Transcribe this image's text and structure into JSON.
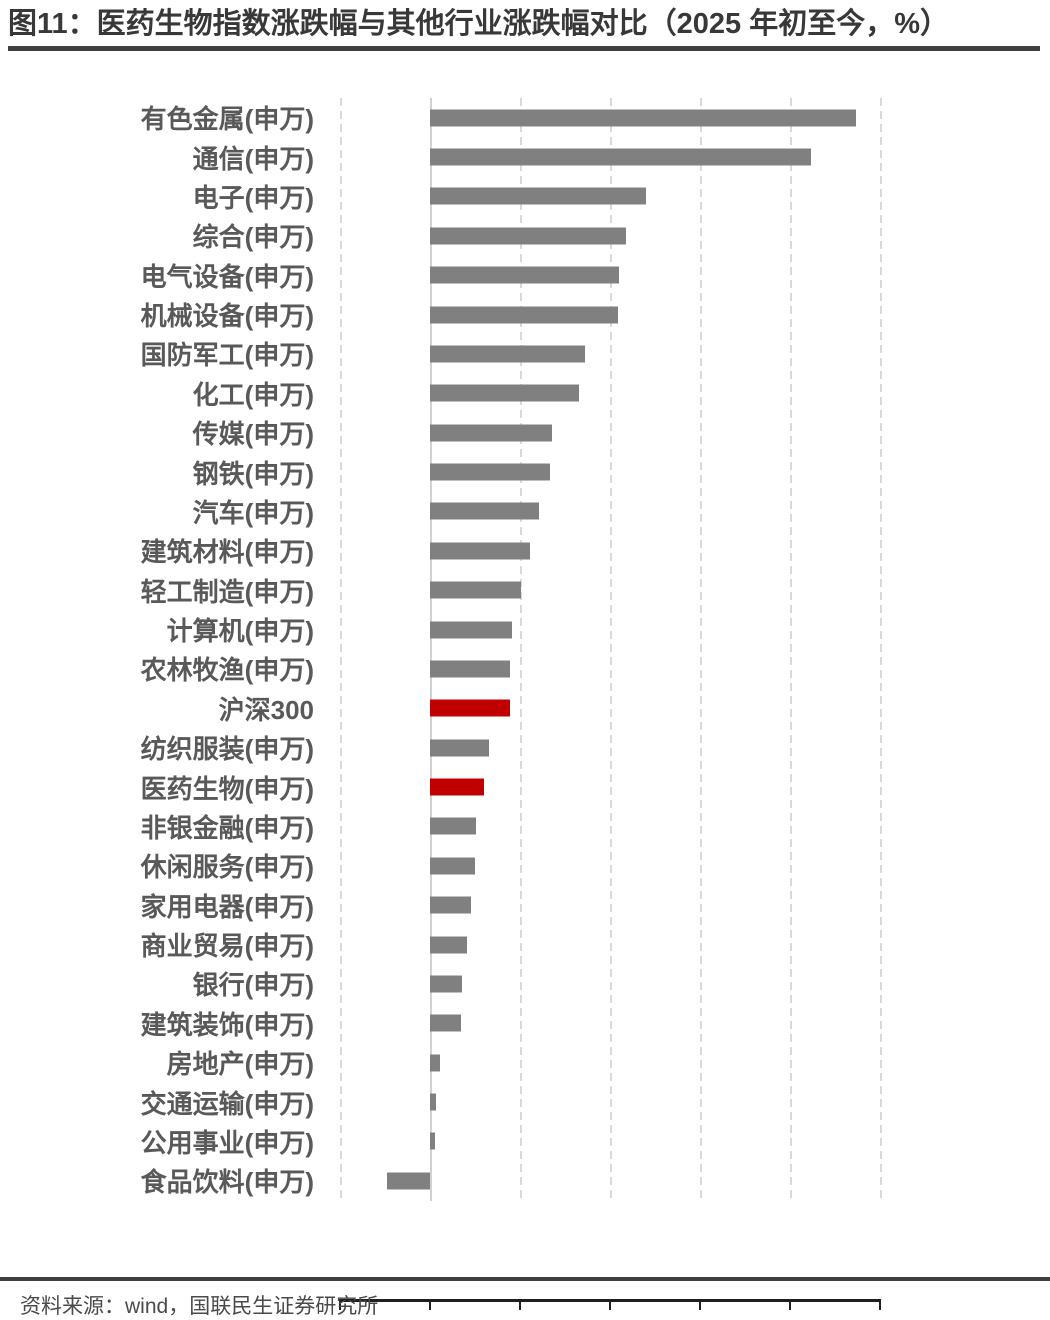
{
  "page": {
    "title": "图11：医药生物指数涨跌幅与其他行业涨跌幅对比（2025 年初至今，%）",
    "source_note": "资料来源：wind，国联民生证券研究所"
  },
  "colors": {
    "bar_default": "#808080",
    "bar_highlight": "#C00000",
    "axis_line": "#1f1f1f",
    "gridline": "#d9d9d9",
    "text_gray": "#595959",
    "title_text": "#383838",
    "rule": "#404040"
  },
  "chart_data": {
    "type": "bar",
    "orientation": "horizontal",
    "title": "医药生物指数涨跌幅与其他行业涨跌幅对比（2025 年初至今，%）",
    "categories": [
      "有色金属(申万)",
      "通信(申万)",
      "电子(申万)",
      "综合(申万)",
      "电气设备(申万)",
      "机械设备(申万)",
      "国防军工(申万)",
      "化工(申万)",
      "传媒(申万)",
      "钢铁(申万)",
      "汽车(申万)",
      "建筑材料(申万)",
      "轻工制造(申万)",
      "计算机(申万)",
      "农林牧渔(申万)",
      "沪深300",
      "纺织服装(申万)",
      "医药生物(申万)",
      "非银金融(申万)",
      "休闲服务(申万)",
      "家用电器(申万)",
      "商业贸易(申万)",
      "银行(申万)",
      "建筑装饰(申万)",
      "房地产(申万)",
      "交通运输(申万)",
      "公用事业(申万)",
      "食品饮料(申万)"
    ],
    "values": [
      94.7,
      84.7,
      48.0,
      43.6,
      42.0,
      41.7,
      34.4,
      33.2,
      27.1,
      26.6,
      24.3,
      22.2,
      20.2,
      18.3,
      17.8,
      17.7,
      13.2,
      12.1,
      10.2,
      10.0,
      9.2,
      8.3,
      7.1,
      6.8,
      2.2,
      1.3,
      1.2,
      -9.5
    ],
    "highlighted_categories": [
      "沪深300",
      "医药生物(申万)"
    ],
    "bar_color": "#808080",
    "highlight_color": "#C00000",
    "x_ticks": [
      -20,
      0,
      20,
      40,
      60,
      80,
      100
    ],
    "xlim": [
      -20,
      100
    ],
    "xlabel": "",
    "ylabel": "",
    "grid": "vertical dashed gridlines at ticks, solid light line at 0",
    "legend": "none"
  }
}
